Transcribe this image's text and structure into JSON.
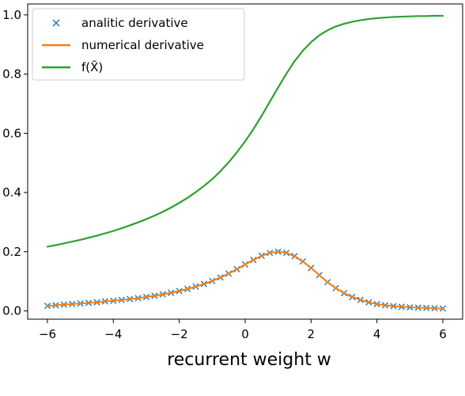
{
  "chart_data": {
    "type": "line",
    "title": "",
    "xlabel": "recurrent weight w",
    "ylabel": "",
    "xlim": [
      -6.6,
      6.6
    ],
    "ylim": [
      -0.028,
      1.037
    ],
    "grid": false,
    "legend_position": "top-left",
    "xticks": [
      -6,
      -4,
      -2,
      0,
      2,
      4,
      6
    ],
    "xtick_labels": [
      "−6",
      "−4",
      "−2",
      "0",
      "2",
      "4",
      "6"
    ],
    "yticks": [
      0.0,
      0.2,
      0.4,
      0.6,
      0.8,
      1.0
    ],
    "ytick_labels": [
      "0.0",
      "0.2",
      "0.4",
      "0.6",
      "0.8",
      "1.0"
    ],
    "series": [
      {
        "name": "analitic derivative",
        "style": "markers",
        "marker": "x",
        "color": "#1f77b4",
        "x": [
          -6,
          -5.75,
          -5.5,
          -5.25,
          -5,
          -4.75,
          -4.5,
          -4.25,
          -4,
          -3.75,
          -3.5,
          -3.25,
          -3,
          -2.75,
          -2.5,
          -2.25,
          -2,
          -1.75,
          -1.5,
          -1.25,
          -1,
          -0.75,
          -0.5,
          -0.25,
          0,
          0.25,
          0.5,
          0.75,
          1,
          1.25,
          1.5,
          1.75,
          2,
          2.25,
          2.5,
          2.75,
          3,
          3.25,
          3.5,
          3.75,
          4,
          4.25,
          4.5,
          4.75,
          5,
          5.25,
          5.5,
          5.75,
          6
        ],
        "y": [
          0.017,
          0.019,
          0.021,
          0.023,
          0.025,
          0.027,
          0.029,
          0.032,
          0.034,
          0.037,
          0.04,
          0.043,
          0.047,
          0.051,
          0.056,
          0.061,
          0.067,
          0.074,
          0.082,
          0.091,
          0.101,
          0.113,
          0.126,
          0.141,
          0.157,
          0.172,
          0.186,
          0.196,
          0.2,
          0.196,
          0.185,
          0.167,
          0.145,
          0.121,
          0.097,
          0.077,
          0.06,
          0.047,
          0.037,
          0.029,
          0.023,
          0.019,
          0.016,
          0.014,
          0.012,
          0.011,
          0.01,
          0.009,
          0.008
        ]
      },
      {
        "name": "numerical derivative",
        "style": "line",
        "color": "#ff7f0e",
        "x": [
          -6,
          -5.75,
          -5.5,
          -5.25,
          -5,
          -4.75,
          -4.5,
          -4.25,
          -4,
          -3.75,
          -3.5,
          -3.25,
          -3,
          -2.75,
          -2.5,
          -2.25,
          -2,
          -1.75,
          -1.5,
          -1.25,
          -1,
          -0.75,
          -0.5,
          -0.25,
          0,
          0.25,
          0.5,
          0.75,
          1,
          1.25,
          1.5,
          1.75,
          2,
          2.25,
          2.5,
          2.75,
          3,
          3.25,
          3.5,
          3.75,
          4,
          4.25,
          4.5,
          4.75,
          5,
          5.25,
          5.5,
          5.75,
          6
        ],
        "y": [
          0.017,
          0.019,
          0.021,
          0.023,
          0.025,
          0.027,
          0.029,
          0.032,
          0.034,
          0.037,
          0.04,
          0.043,
          0.047,
          0.051,
          0.056,
          0.061,
          0.067,
          0.074,
          0.082,
          0.091,
          0.101,
          0.113,
          0.126,
          0.141,
          0.157,
          0.172,
          0.186,
          0.196,
          0.2,
          0.196,
          0.185,
          0.167,
          0.145,
          0.121,
          0.097,
          0.077,
          0.06,
          0.047,
          0.037,
          0.029,
          0.023,
          0.019,
          0.016,
          0.014,
          0.012,
          0.011,
          0.01,
          0.009,
          0.008
        ]
      },
      {
        "name": "f(X̃)",
        "style": "line",
        "color": "#2ca02c",
        "x": [
          -6,
          -5.75,
          -5.5,
          -5.25,
          -5,
          -4.75,
          -4.5,
          -4.25,
          -4,
          -3.75,
          -3.5,
          -3.25,
          -3,
          -2.75,
          -2.5,
          -2.25,
          -2,
          -1.75,
          -1.5,
          -1.25,
          -1,
          -0.75,
          -0.5,
          -0.25,
          0,
          0.25,
          0.5,
          0.75,
          1,
          1.25,
          1.5,
          1.75,
          2,
          2.25,
          2.5,
          2.75,
          3,
          3.25,
          3.5,
          3.75,
          4,
          4.25,
          4.5,
          4.75,
          5,
          5.25,
          5.5,
          5.75,
          6
        ],
        "y": [
          0.217,
          0.222,
          0.228,
          0.234,
          0.24,
          0.247,
          0.254,
          0.262,
          0.27,
          0.279,
          0.289,
          0.299,
          0.31,
          0.322,
          0.335,
          0.349,
          0.365,
          0.382,
          0.401,
          0.422,
          0.445,
          0.472,
          0.502,
          0.536,
          0.573,
          0.614,
          0.659,
          0.707,
          0.755,
          0.801,
          0.844,
          0.879,
          0.908,
          0.931,
          0.948,
          0.961,
          0.97,
          0.977,
          0.982,
          0.986,
          0.989,
          0.991,
          0.993,
          0.994,
          0.995,
          0.996,
          0.996,
          0.997,
          0.997
        ]
      }
    ]
  }
}
